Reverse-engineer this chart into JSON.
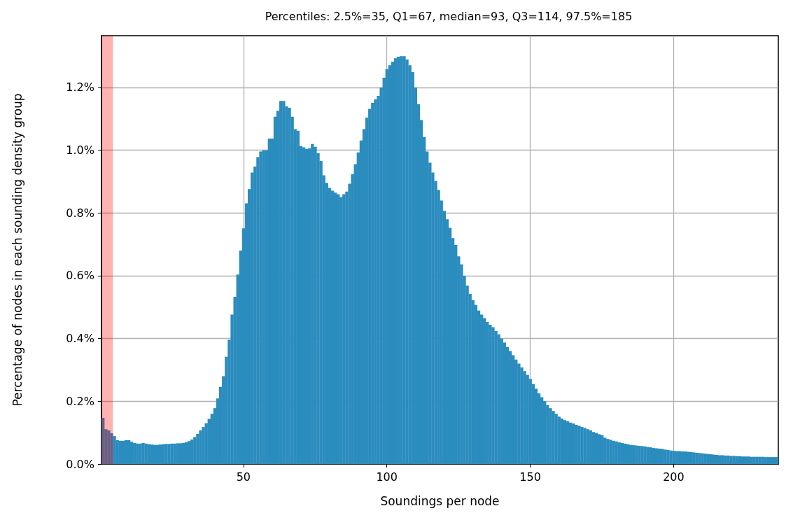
{
  "chart_data": {
    "type": "histogram",
    "title": "Percentiles: 2.5%=35, Q1=67, median=93, Q3=114, 97.5%=185",
    "xlabel": "Soundings per node",
    "ylabel": "Percentage of nodes in each sounding density group",
    "color": "#2b8cbe",
    "bins": [
      0.5,
      1.5,
      2.5,
      3.5,
      4.5,
      5.5,
      6.5,
      7.5,
      8.5,
      9.5,
      10.5,
      11.5,
      12.5,
      13.5,
      14.5,
      15.5,
      16.5,
      17.5,
      18.5,
      19.5,
      20.5,
      21.5,
      22.5,
      23.5,
      24.5,
      25.5,
      26.5,
      27.5,
      28.5,
      29.5,
      30.5,
      31.5,
      32.5,
      33.5,
      34.5,
      35.5,
      36.5,
      37.5,
      38.5,
      39.5,
      40.5,
      41.5,
      42.5,
      43.5,
      44.5,
      45.5,
      46.5,
      47.5,
      48.5,
      49.5,
      50.5,
      51.5,
      52.5,
      53.5,
      54.5,
      55.5,
      56.5,
      57.5,
      58.5,
      59.5,
      60.5,
      61.5,
      62.5,
      63.5,
      64.5,
      65.5,
      66.5,
      67.5,
      68.5,
      69.5,
      70.5,
      71.5,
      72.5,
      73.5,
      74.5,
      75.5,
      76.5,
      77.5,
      78.5,
      79.5,
      80.5,
      81.5,
      82.5,
      83.5,
      84.5,
      85.5,
      86.5,
      87.5,
      88.5,
      89.5,
      90.5,
      91.5,
      92.5,
      93.5,
      94.5,
      95.5,
      96.5,
      97.5,
      98.5,
      99.5,
      100.5,
      101.5,
      102.5,
      103.5,
      104.5,
      105.5,
      106.5,
      107.5,
      108.5,
      109.5,
      110.5,
      111.5,
      112.5,
      113.5,
      114.5,
      115.5,
      116.5,
      117.5,
      118.5,
      119.5,
      120.5,
      121.5,
      122.5,
      123.5,
      124.5,
      125.5,
      126.5,
      127.5,
      128.5,
      129.5,
      130.5,
      131.5,
      132.5,
      133.5,
      134.5,
      135.5,
      136.5,
      137.5,
      138.5,
      139.5,
      140.5,
      141.5,
      142.5,
      143.5,
      144.5,
      145.5,
      146.5,
      147.5,
      148.5,
      149.5,
      150.5,
      151.5,
      152.5,
      153.5,
      154.5,
      155.5,
      156.5,
      157.5,
      158.5,
      159.5,
      160.5,
      161.5,
      162.5,
      163.5,
      164.5,
      165.5,
      166.5,
      167.5,
      168.5,
      169.5,
      170.5,
      171.5,
      172.5,
      173.5,
      174.5,
      175.5,
      176.5,
      177.5,
      178.5,
      179.5,
      180.5,
      181.5,
      182.5,
      183.5,
      184.5,
      185.5,
      186.5,
      187.5,
      188.5,
      189.5,
      190.5,
      191.5,
      192.5,
      193.5,
      194.5,
      195.5,
      196.5,
      197.5,
      198.5,
      199.5,
      200.5,
      201.5,
      202.5,
      203.5,
      204.5,
      205.5,
      206.5,
      207.5,
      208.5,
      209.5,
      210.5,
      211.5,
      212.5,
      213.5,
      214.5,
      215.5,
      216.5,
      217.5,
      218.5,
      219.5,
      220.5,
      221.5,
      222.5,
      223.5,
      224.5,
      225.5,
      226.5,
      227.5,
      228.5,
      229.5,
      230.5,
      231.5,
      232.5,
      233.5,
      234.5,
      235.5,
      236.5
    ],
    "values": [
      0.147,
      0.111,
      0.107,
      0.098,
      0.089,
      0.076,
      0.074,
      0.074,
      0.076,
      0.076,
      0.071,
      0.067,
      0.065,
      0.065,
      0.067,
      0.065,
      0.063,
      0.062,
      0.061,
      0.061,
      0.062,
      0.063,
      0.064,
      0.064,
      0.065,
      0.065,
      0.066,
      0.066,
      0.067,
      0.069,
      0.073,
      0.078,
      0.086,
      0.096,
      0.107,
      0.118,
      0.13,
      0.144,
      0.16,
      0.178,
      0.209,
      0.246,
      0.28,
      0.342,
      0.396,
      0.476,
      0.533,
      0.604,
      0.68,
      0.751,
      0.831,
      0.876,
      0.929,
      0.948,
      0.978,
      0.996,
      1.0,
      1.0,
      1.037,
      1.037,
      1.107,
      1.126,
      1.157,
      1.157,
      1.14,
      1.135,
      1.107,
      1.067,
      1.062,
      1.013,
      1.009,
      1.004,
      1.006,
      1.02,
      1.011,
      0.991,
      0.966,
      0.92,
      0.896,
      0.88,
      0.871,
      0.865,
      0.86,
      0.851,
      0.86,
      0.868,
      0.893,
      0.924,
      0.956,
      0.993,
      1.031,
      1.067,
      1.104,
      1.132,
      1.151,
      1.162,
      1.173,
      1.2,
      1.231,
      1.258,
      1.271,
      1.282,
      1.293,
      1.298,
      1.3,
      1.3,
      1.289,
      1.271,
      1.249,
      1.2,
      1.147,
      1.096,
      1.042,
      0.996,
      0.96,
      0.929,
      0.902,
      0.873,
      0.84,
      0.807,
      0.78,
      0.753,
      0.72,
      0.698,
      0.662,
      0.636,
      0.6,
      0.569,
      0.542,
      0.522,
      0.507,
      0.489,
      0.476,
      0.465,
      0.453,
      0.444,
      0.436,
      0.424,
      0.413,
      0.4,
      0.387,
      0.373,
      0.36,
      0.347,
      0.333,
      0.32,
      0.308,
      0.296,
      0.284,
      0.271,
      0.255,
      0.24,
      0.225,
      0.213,
      0.2,
      0.188,
      0.178,
      0.169,
      0.16,
      0.151,
      0.145,
      0.14,
      0.136,
      0.132,
      0.129,
      0.125,
      0.122,
      0.118,
      0.115,
      0.111,
      0.107,
      0.102,
      0.099,
      0.095,
      0.092,
      0.084,
      0.08,
      0.077,
      0.074,
      0.072,
      0.069,
      0.067,
      0.065,
      0.063,
      0.061,
      0.06,
      0.059,
      0.058,
      0.057,
      0.056,
      0.054,
      0.053,
      0.051,
      0.05,
      0.049,
      0.048,
      0.046,
      0.045,
      0.043,
      0.042,
      0.041,
      0.041,
      0.04,
      0.04,
      0.039,
      0.038,
      0.037,
      0.036,
      0.035,
      0.034,
      0.033,
      0.032,
      0.031,
      0.03,
      0.029,
      0.028,
      0.028,
      0.027,
      0.027,
      0.026,
      0.026,
      0.025,
      0.025,
      0.024,
      0.024,
      0.024,
      0.023,
      0.023,
      0.023,
      0.023,
      0.023,
      0.022,
      0.022,
      0.022,
      0.022,
      0.022
    ],
    "xlim": [
      0.5,
      236.5
    ],
    "xticks": [
      50,
      100,
      150,
      200
    ],
    "ylim": [
      0,
      1.365
    ],
    "yticks": [
      {
        "value": 0,
        "label": "0.0%"
      },
      {
        "value": 0.2,
        "label": "0.2%"
      },
      {
        "value": 0.4,
        "label": "0.4%"
      },
      {
        "value": 0.6,
        "label": "0.6%"
      },
      {
        "value": 0.8,
        "label": "0.8%"
      },
      {
        "value": 1.0,
        "label": "1.0%"
      },
      {
        "value": 1.2,
        "label": "1.2%"
      }
    ],
    "bands": [
      {
        "axis": "x",
        "from": 0.5,
        "to": 4.5,
        "color": "#ff0000"
      }
    ],
    "grid": true
  }
}
